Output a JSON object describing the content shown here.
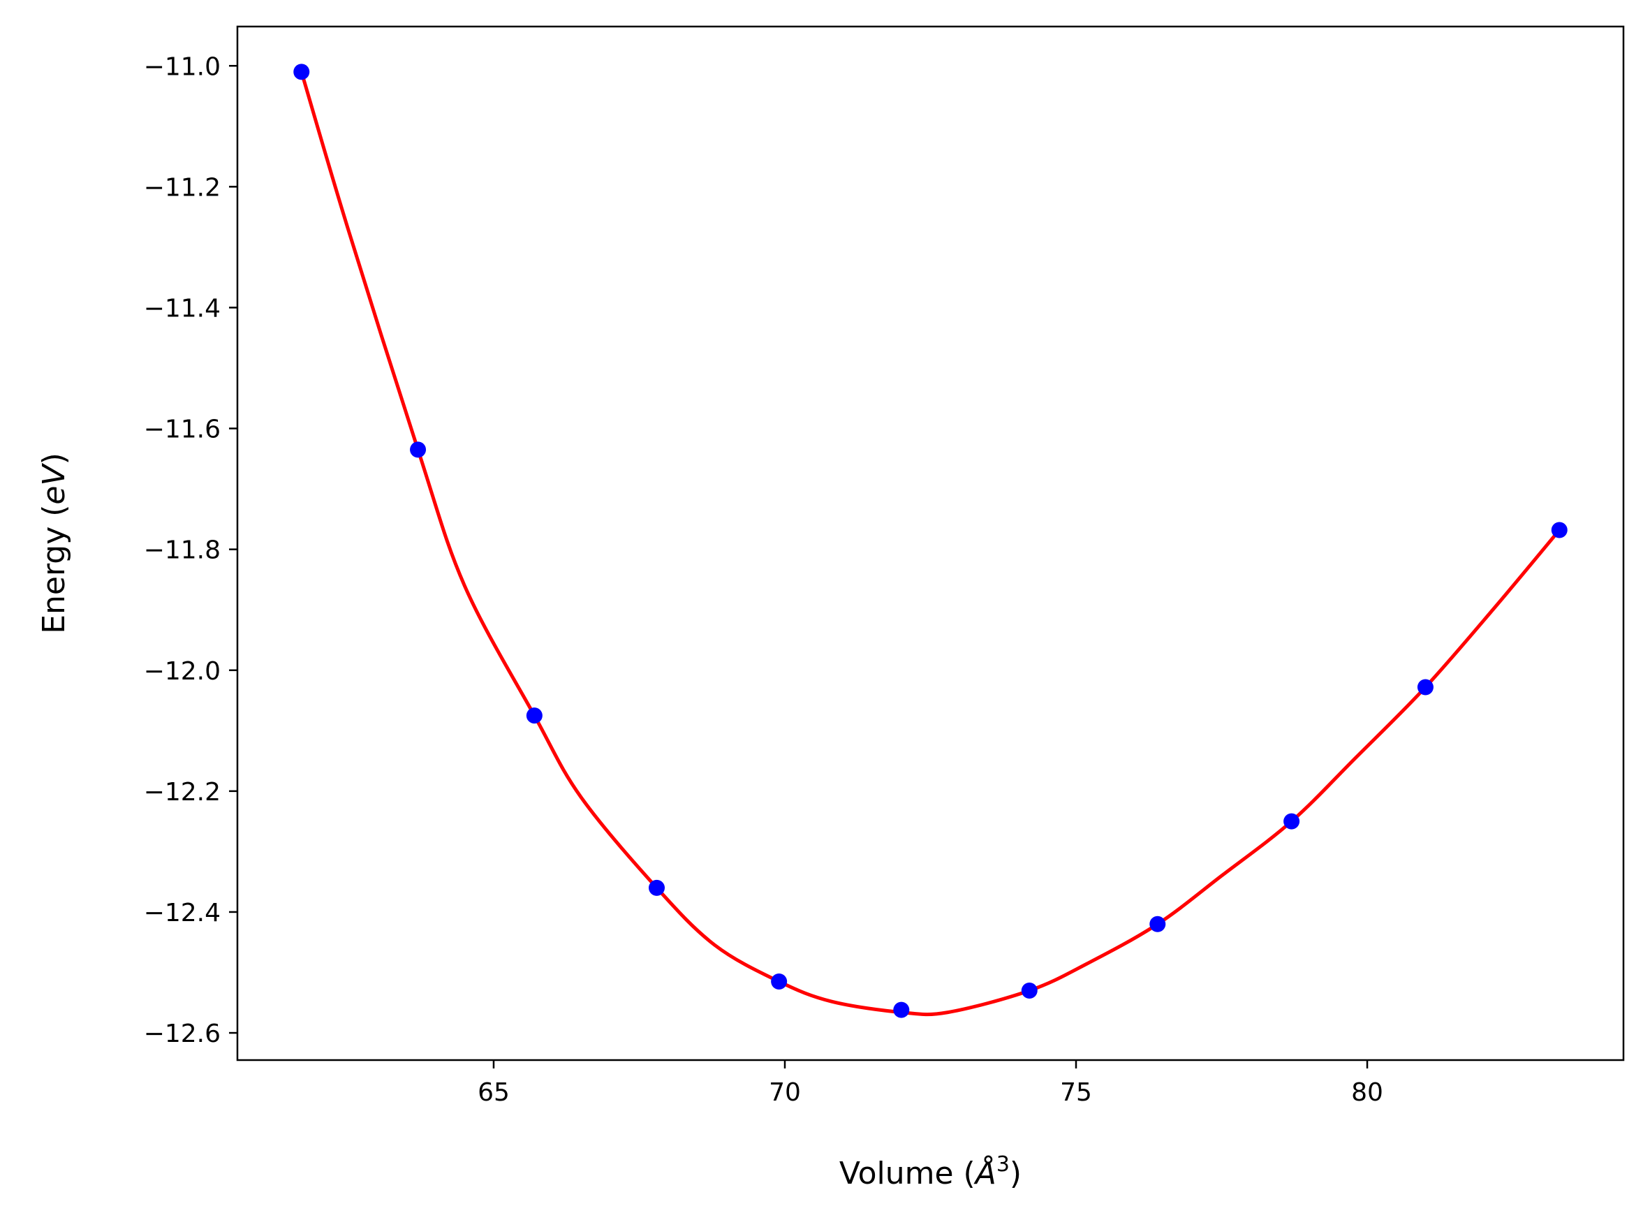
{
  "chart_data": {
    "type": "line",
    "xlabel": "Volume (Å³)",
    "xlabel_parts": {
      "prefix": "Volume (",
      "unit": "Å",
      "sup": "3",
      "suffix": ")"
    },
    "ylabel": "Energy (eV)",
    "ylabel_parts": {
      "prefix": "Energy (",
      "unit": "eV",
      "suffix": ")"
    },
    "xlim": [
      60.6,
      84.4
    ],
    "ylim": [
      -12.645,
      -10.935
    ],
    "xticks": [
      65,
      70,
      75,
      80
    ],
    "xtick_labels": [
      "65",
      "70",
      "75",
      "80"
    ],
    "yticks": [
      -11.0,
      -11.2,
      -11.4,
      -11.6,
      -11.8,
      -12.0,
      -12.2,
      -12.4,
      -12.6
    ],
    "ytick_labels": [
      "−11.0",
      "−11.2",
      "−11.4",
      "−11.6",
      "−11.8",
      "−12.0",
      "−12.2",
      "−12.4",
      "−12.6"
    ],
    "grid": false,
    "series": [
      {
        "kind": "points",
        "color": "#0000ff",
        "x": [
          61.7,
          63.7,
          65.7,
          67.8,
          69.9,
          72.0,
          74.2,
          76.4,
          78.7,
          81.0,
          83.3
        ],
        "y": [
          -11.01,
          -11.635,
          -12.075,
          -12.36,
          -12.515,
          -12.562,
          -12.53,
          -12.42,
          -12.25,
          -12.028,
          -11.768
        ]
      },
      {
        "kind": "fit-curve",
        "color": "#ff0000",
        "x": [
          61.7,
          62.5,
          63.7,
          64.5,
          65.7,
          66.5,
          67.8,
          68.8,
          69.9,
          70.8,
          72.0,
          72.8,
          74.2,
          75.2,
          76.4,
          77.5,
          78.7,
          79.8,
          81.0,
          82.2,
          83.3
        ],
        "y": [
          -11.01,
          -11.27,
          -11.635,
          -11.86,
          -12.075,
          -12.21,
          -12.36,
          -12.455,
          -12.515,
          -12.548,
          -12.566,
          -12.566,
          -12.53,
          -12.485,
          -12.42,
          -12.34,
          -12.25,
          -12.145,
          -12.028,
          -11.895,
          -11.768
        ]
      }
    ]
  }
}
